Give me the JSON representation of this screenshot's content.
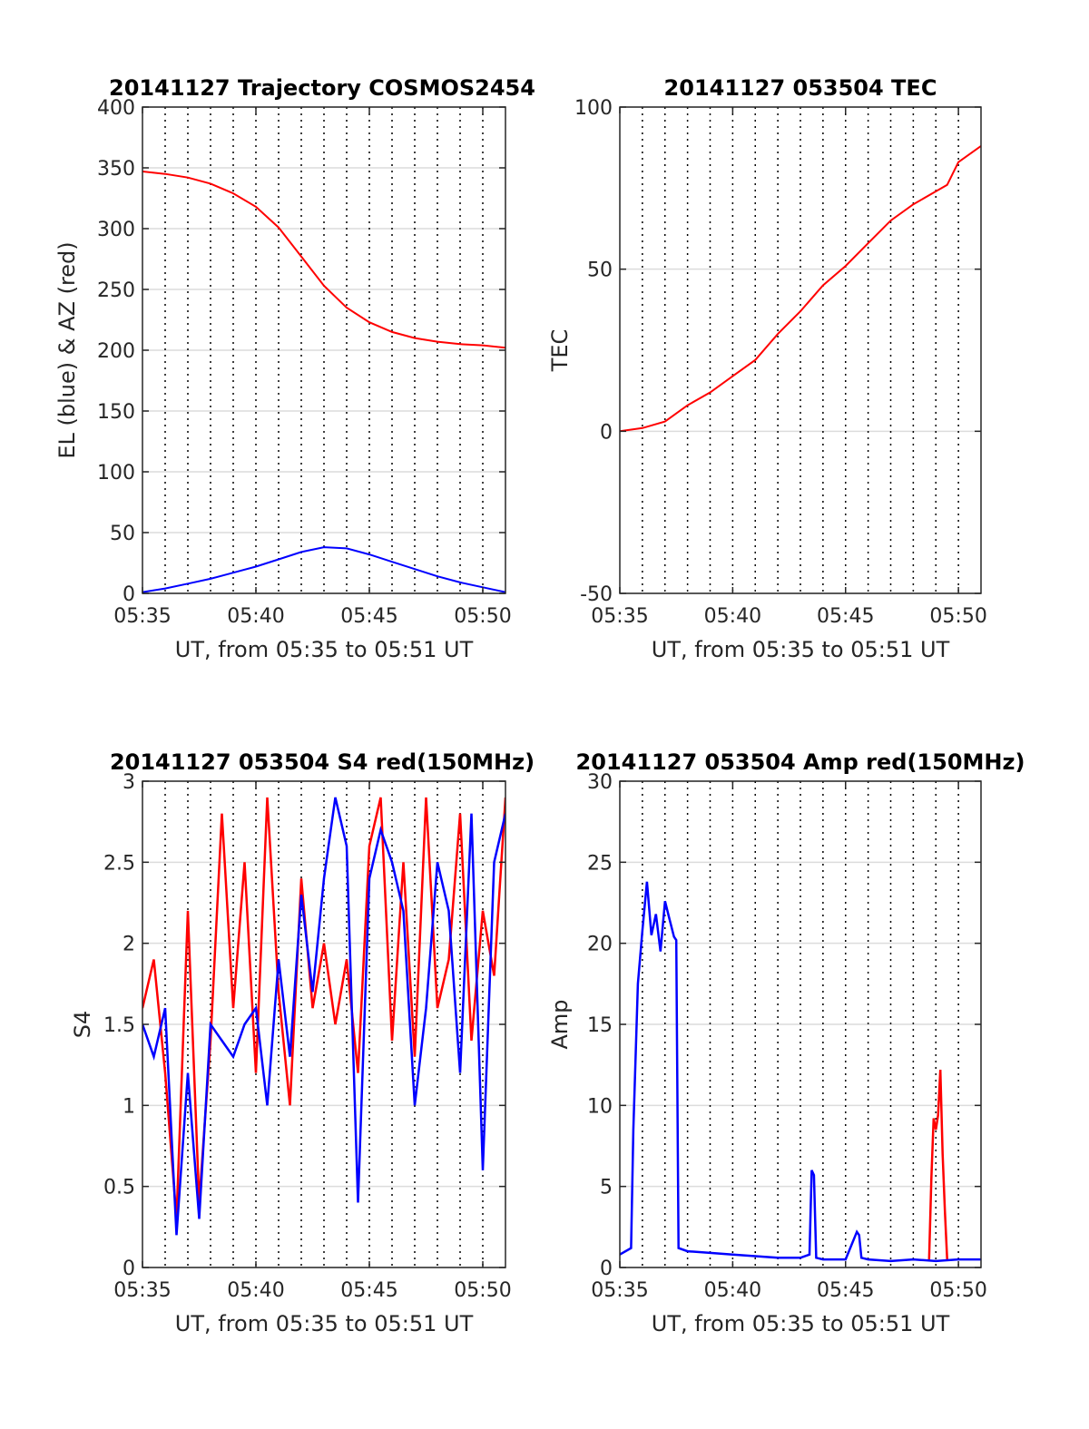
{
  "colors": {
    "az": "#ff0000",
    "el": "#0000ff",
    "red_series": "#ff0000",
    "blue_series": "#0000ff",
    "grid": "#dcdcdc",
    "vline": "#000000"
  },
  "chart_data": [
    {
      "type": "line",
      "title": "20141127 Trajectory COSMOS2454",
      "xlabel": "UT, from 05:35 to 05:51 UT",
      "ylabel": "EL (blue) & AZ (red)",
      "xlim": [
        0,
        16
      ],
      "ylim": [
        0,
        400
      ],
      "xticks": [
        0,
        5,
        10,
        15
      ],
      "xticklabels": [
        "05:35",
        "05:40",
        "05:45",
        "05:50"
      ],
      "yticks": [
        0,
        50,
        100,
        150,
        200,
        250,
        300,
        350,
        400
      ],
      "yticklabels": [
        "0",
        "50",
        "100",
        "150",
        "200",
        "250",
        "300",
        "350",
        "400"
      ],
      "grid": "horizontal",
      "vlines_minutes": [
        1,
        2,
        3,
        4,
        5,
        6,
        7,
        8,
        9,
        10,
        11,
        12,
        13,
        14,
        15
      ],
      "series": [
        {
          "color": "az",
          "x": [
            0,
            1,
            2,
            3,
            4,
            5,
            6,
            7,
            8,
            9,
            10,
            11,
            12,
            13,
            14,
            15,
            16
          ],
          "y": [
            347,
            345,
            342,
            337,
            329,
            318,
            301,
            277,
            253,
            235,
            223,
            215,
            210,
            207,
            205,
            204,
            202
          ]
        },
        {
          "color": "el",
          "x": [
            0,
            1,
            2,
            3,
            4,
            5,
            6,
            7,
            8,
            9,
            10,
            11,
            12,
            13,
            14,
            15,
            16
          ],
          "y": [
            1,
            4,
            8,
            12,
            17,
            22,
            28,
            34,
            38,
            37,
            32,
            26,
            20,
            14,
            9,
            5,
            1
          ]
        }
      ]
    },
    {
      "type": "line",
      "title": "20141127 053504 TEC",
      "xlabel": "UT, from 05:35 to 05:51 UT",
      "ylabel": "TEC",
      "xlim": [
        0,
        16
      ],
      "ylim": [
        -50,
        100
      ],
      "xticks": [
        0,
        5,
        10,
        15
      ],
      "xticklabels": [
        "05:35",
        "05:40",
        "05:45",
        "05:50"
      ],
      "yticks": [
        -50,
        0,
        50,
        100
      ],
      "yticklabels": [
        "-50",
        "0",
        "50",
        "100"
      ],
      "grid": "horizontal",
      "vlines_minutes": [
        1,
        2,
        3,
        4,
        5,
        6,
        7,
        8,
        9,
        10,
        11,
        12,
        13,
        14,
        15
      ],
      "series": [
        {
          "color": "red_series",
          "x": [
            0,
            1,
            2,
            3,
            4,
            5,
            6,
            7,
            8,
            9,
            10,
            11,
            12,
            13,
            14,
            14.5,
            15,
            16
          ],
          "y": [
            0,
            1,
            3,
            8,
            12,
            17,
            22,
            30,
            37,
            45,
            51,
            58,
            65,
            70,
            74,
            76,
            83,
            88
          ]
        }
      ]
    },
    {
      "type": "line",
      "title": "20141127 053504 S4 red(150MHz)",
      "xlabel": "UT, from 05:35 to 05:51 UT",
      "ylabel": "S4",
      "xlim": [
        0,
        16
      ],
      "ylim": [
        0,
        3
      ],
      "xticks": [
        0,
        5,
        10,
        15
      ],
      "xticklabels": [
        "05:35",
        "05:40",
        "05:45",
        "05:50"
      ],
      "yticks": [
        0,
        0.5,
        1,
        1.5,
        2,
        2.5,
        3
      ],
      "yticklabels": [
        "0",
        "0.5",
        "1",
        "1.5",
        "2",
        "2.5",
        "3"
      ],
      "grid": "horizontal",
      "vlines_minutes": [
        1,
        2,
        3,
        4,
        5,
        6,
        7,
        8,
        9,
        10,
        11,
        12,
        13,
        14,
        15
      ],
      "series": [
        {
          "color": "red_series",
          "x": [
            0,
            0.5,
            1,
            1.5,
            2,
            2.5,
            3,
            3.5,
            4,
            4.5,
            5,
            5.5,
            6,
            6.5,
            7,
            7.5,
            8,
            8.5,
            9,
            9.5,
            10,
            10.5,
            11,
            11.5,
            12,
            12.5,
            13,
            13.5,
            14,
            14.5,
            15,
            15.5,
            16
          ],
          "y": [
            1.6,
            1.9,
            1.2,
            0.3,
            2.2,
            0.4,
            1.4,
            2.8,
            1.6,
            2.5,
            1.2,
            2.9,
            1.7,
            1.0,
            2.4,
            1.6,
            2.0,
            1.5,
            1.9,
            1.2,
            2.6,
            2.9,
            1.4,
            2.5,
            1.3,
            2.9,
            1.6,
            1.9,
            2.8,
            1.4,
            2.2,
            1.8,
            2.9
          ]
        },
        {
          "color": "blue_series",
          "x": [
            0,
            0.5,
            1,
            1.5,
            2,
            2.5,
            3,
            3.5,
            4,
            4.5,
            5,
            5.5,
            6,
            6.5,
            7,
            7.5,
            8,
            8.5,
            9,
            9.5,
            10,
            10.5,
            11,
            11.5,
            12,
            12.5,
            13,
            13.5,
            14,
            14.5,
            15,
            15.5,
            16
          ],
          "y": [
            1.5,
            1.3,
            1.6,
            0.2,
            1.2,
            0.3,
            1.5,
            1.4,
            1.3,
            1.5,
            1.6,
            1.0,
            1.9,
            1.3,
            2.3,
            1.7,
            2.4,
            2.9,
            2.6,
            0.4,
            2.4,
            2.7,
            2.5,
            2.2,
            1.0,
            1.6,
            2.5,
            2.2,
            1.2,
            2.8,
            0.6,
            2.5,
            2.8
          ]
        }
      ]
    },
    {
      "type": "line",
      "title": "20141127 053504 Amp red(150MHz)",
      "xlabel": "UT, from 05:35 to 05:51 UT",
      "ylabel": "Amp",
      "xlim": [
        0,
        16
      ],
      "ylim": [
        0,
        30
      ],
      "xticks": [
        0,
        5,
        10,
        15
      ],
      "xticklabels": [
        "05:35",
        "05:40",
        "05:45",
        "05:50"
      ],
      "yticks": [
        0,
        5,
        10,
        15,
        20,
        25,
        30
      ],
      "yticklabels": [
        "0",
        "5",
        "10",
        "15",
        "20",
        "25",
        "30"
      ],
      "grid": "horizontal",
      "vlines_minutes": [
        1,
        2,
        3,
        4,
        5,
        6,
        7,
        8,
        9,
        10,
        11,
        12,
        13,
        14,
        15
      ],
      "series": [
        {
          "color": "red_series",
          "x": [
            13.7,
            13.8,
            13.9,
            14.0,
            14.1,
            14.2,
            14.3,
            14.4,
            14.5
          ],
          "y": [
            0.5,
            5.5,
            9.2,
            8.5,
            9.4,
            12.2,
            7.0,
            3.5,
            0.5
          ]
        },
        {
          "color": "blue_series",
          "x": [
            0,
            0.5,
            0.6,
            0.8,
            1.0,
            1.2,
            1.4,
            1.6,
            1.8,
            2.0,
            2.2,
            2.4,
            2.5,
            2.6,
            3,
            4,
            5,
            6,
            7,
            8,
            8.4,
            8.5,
            8.6,
            8.7,
            9,
            10,
            10.5,
            10.6,
            10.7,
            11,
            12,
            13,
            14,
            15,
            16
          ],
          "y": [
            0.8,
            1.2,
            8.5,
            17.5,
            20.8,
            23.8,
            20.5,
            21.8,
            19.5,
            22.6,
            21.5,
            20.4,
            20.2,
            1.2,
            1.0,
            0.9,
            0.8,
            0.7,
            0.6,
            0.6,
            0.8,
            6.0,
            5.7,
            0.6,
            0.5,
            0.5,
            2.2,
            2.0,
            0.6,
            0.5,
            0.4,
            0.5,
            0.4,
            0.5,
            0.5
          ]
        }
      ]
    }
  ]
}
